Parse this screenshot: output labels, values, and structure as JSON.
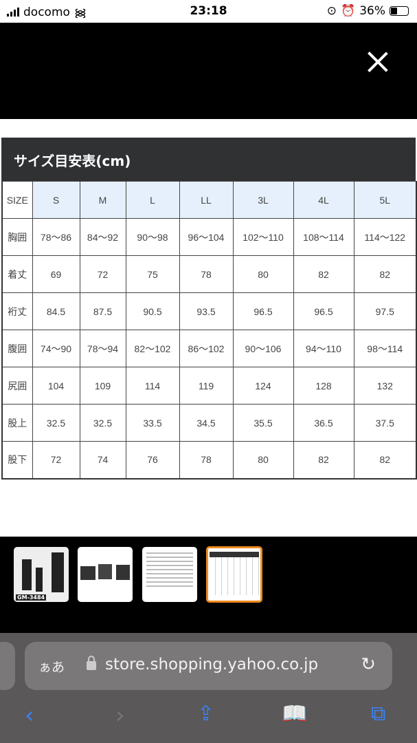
{
  "status": {
    "carrier": "docomo",
    "time": "23:18",
    "battery": "36%",
    "battery_level": 0.36
  },
  "chart_data": {
    "type": "table",
    "title": "サイズ目安表(cm)",
    "columns": [
      "SIZE",
      "S",
      "M",
      "L",
      "LL",
      "3L",
      "4L",
      "5L"
    ],
    "rows": [
      [
        "胸囲",
        "78～86",
        "84～92",
        "90～98",
        "96～104",
        "102～110",
        "108～114",
        "114～122"
      ],
      [
        "着丈",
        "69",
        "72",
        "75",
        "78",
        "80",
        "82",
        "82"
      ],
      [
        "裄丈",
        "84.5",
        "87.5",
        "90.5",
        "93.5",
        "96.5",
        "96.5",
        "97.5"
      ],
      [
        "腹囲",
        "74～90",
        "78～94",
        "82～102",
        "86～102",
        "90～106",
        "94～110",
        "98～114"
      ],
      [
        "尻囲",
        "104",
        "109",
        "114",
        "119",
        "124",
        "128",
        "132"
      ],
      [
        "股上",
        "32.5",
        "32.5",
        "33.5",
        "34.5",
        "35.5",
        "36.5",
        "37.5"
      ],
      [
        "股下",
        "72",
        "74",
        "76",
        "78",
        "80",
        "82",
        "82"
      ]
    ]
  },
  "thumbnails": [
    {
      "label": "GM-3484"
    },
    {},
    {},
    {
      "selected": true
    }
  ],
  "browser": {
    "aa": "ぁあ",
    "url": "store.shopping.yahoo.co.jp"
  },
  "colors": {
    "accent": "#f08a1d",
    "link": "#3b82f6"
  }
}
